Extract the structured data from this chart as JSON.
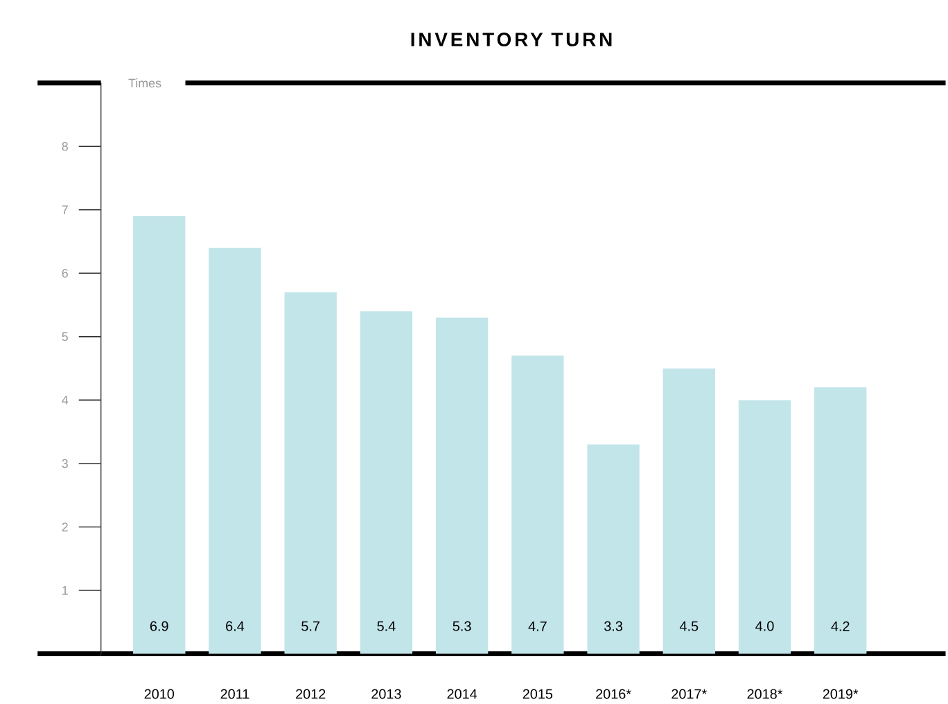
{
  "chart_data": {
    "type": "bar",
    "title": "INVENTORY TURN",
    "ylabel": "Times",
    "categories": [
      "2010",
      "2011",
      "2012",
      "2013",
      "2014",
      "2015",
      "2016*",
      "2017*",
      "2018*",
      "2019*"
    ],
    "values": [
      6.9,
      6.4,
      5.7,
      5.4,
      5.3,
      4.7,
      3.3,
      4.5,
      4.0,
      4.2
    ],
    "value_labels": [
      "6.9",
      "6.4",
      "5.7",
      "5.4",
      "5.3",
      "4.7",
      "3.3",
      "4.5",
      "4.0",
      "4.2"
    ],
    "color": "#c2e5ea",
    "ylim": [
      0,
      9
    ],
    "yticks": [
      1,
      2,
      3,
      4,
      5,
      6,
      7,
      8
    ],
    "grid": false
  }
}
